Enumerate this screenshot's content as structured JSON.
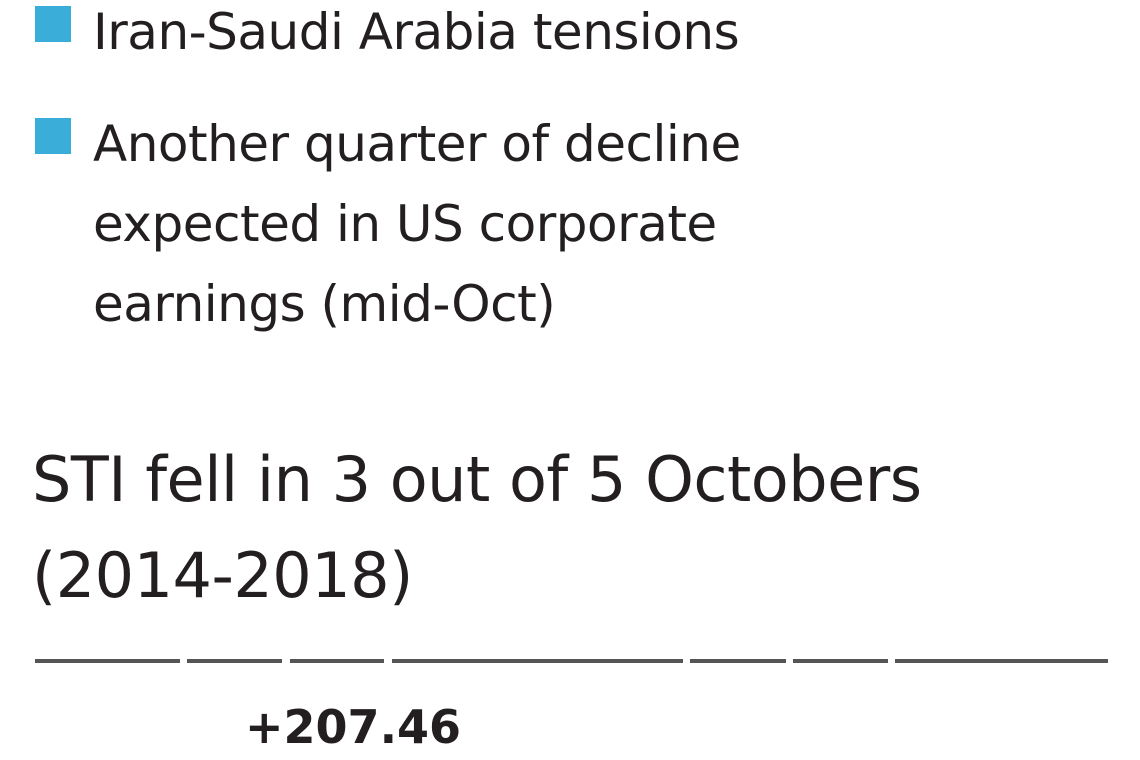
{
  "colors": {
    "bullet": "#3aaed8",
    "text": "#231f20",
    "rule": "#555555"
  },
  "bullets": [
    {
      "icon": "square-bullet-icon",
      "text": "Iran-Saudi Arabia tensions"
    },
    {
      "icon": "square-bullet-icon",
      "lines": [
        "Another quarter of decline",
        "expected in US corporate",
        "earnings (mid-Oct)"
      ]
    }
  ],
  "chart_data": {
    "type": "bar",
    "title": "STI fell in 3 out of 5 Octobers (2014-2018)",
    "title_lines": [
      "STI fell in 3 out of 5 Octobers",
      "(2014-2018)"
    ],
    "data_labels": [
      "+207.46"
    ]
  }
}
